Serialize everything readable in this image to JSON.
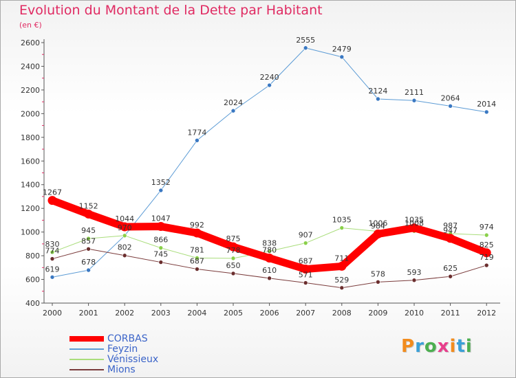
{
  "header": {
    "title": "Evolution du Montant de la Dette par Habitant",
    "subtitle": "(en €)"
  },
  "logo": {
    "text": "Proxiti",
    "colors": [
      "#f28c1e",
      "#3aa0d8",
      "#4caf50",
      "#e83e8c",
      "#f28c1e",
      "#3aa0d8",
      "#4caf50"
    ]
  },
  "chart_data": {
    "type": "line",
    "title": "Evolution du Montant de la Dette par Habitant",
    "subtitle": "(en €)",
    "x": [
      "2000",
      "2001",
      "2002",
      "2003",
      "2004",
      "2005",
      "2006",
      "2007",
      "2008",
      "2009",
      "2010",
      "2011",
      "2012"
    ],
    "ylim": [
      400,
      2600
    ],
    "yticks": [
      400,
      600,
      800,
      1000,
      1200,
      1400,
      1600,
      1800,
      2000,
      2200,
      2400,
      2600
    ],
    "grid": false,
    "legend_position": "bottom-left",
    "series": [
      {
        "name": "Feyzin",
        "color": "#5b9bd5",
        "marker": "#3a78c2",
        "width": 1,
        "values": [
          619,
          678,
          970,
          1352,
          1774,
          2024,
          2240,
          2555,
          2479,
          2124,
          2111,
          2064,
          2014
        ]
      },
      {
        "name": "Vénissieux",
        "color": "#a9dd7b",
        "marker": "#8ad04a",
        "width": 1,
        "values": [
          830,
          945,
          970,
          866,
          781,
          778,
          838,
          907,
          1035,
          1006,
          1008,
          987,
          974
        ]
      },
      {
        "name": "Mions",
        "color": "#7a3b3b",
        "marker": "#6b2e2e",
        "width": 1,
        "values": [
          774,
          857,
          802,
          745,
          687,
          650,
          610,
          571,
          529,
          578,
          593,
          625,
          719
        ]
      },
      {
        "name": "CORBAS",
        "color": "#ff0000",
        "marker": "#ff0000",
        "width": 11,
        "values": [
          1267,
          1152,
          1044,
          1047,
          992,
          875,
          780,
          687,
          711,
          984,
          1035,
          947,
          825
        ]
      }
    ],
    "data_labels": [
      {
        "text": "1267",
        "x": "2000",
        "y": 1267
      },
      {
        "text": "1152",
        "x": "2001",
        "y": 1152
      },
      {
        "text": "1044",
        "x": "2002",
        "y": 1044
      },
      {
        "text": "1047",
        "x": "2003",
        "y": 1047
      },
      {
        "text": "992",
        "x": "2004",
        "y": 992
      },
      {
        "text": "875",
        "x": "2005",
        "y": 875
      },
      {
        "text": "780",
        "x": "2006",
        "y": 780
      },
      {
        "text": "687",
        "x": "2007",
        "y": 687
      },
      {
        "text": "711",
        "x": "2008",
        "y": 711
      },
      {
        "text": "984",
        "x": "2009",
        "y": 984
      },
      {
        "text": "1035",
        "x": "2010",
        "y": 1035
      },
      {
        "text": "947",
        "x": "2011",
        "y": 947
      },
      {
        "text": "825",
        "x": "2012",
        "y": 825
      },
      {
        "text": "619",
        "x": "2000",
        "y": 619
      },
      {
        "text": "678",
        "x": "2001",
        "y": 678
      },
      {
        "text": "970",
        "x": "2002",
        "y": 970
      },
      {
        "text": "1352",
        "x": "2003",
        "y": 1352
      },
      {
        "text": "1774",
        "x": "2004",
        "y": 1774
      },
      {
        "text": "2024",
        "x": "2005",
        "y": 2024
      },
      {
        "text": "2240",
        "x": "2006",
        "y": 2240
      },
      {
        "text": "2555",
        "x": "2007",
        "y": 2555
      },
      {
        "text": "2479",
        "x": "2008",
        "y": 2479
      },
      {
        "text": "2124",
        "x": "2009",
        "y": 2124
      },
      {
        "text": "2111",
        "x": "2010",
        "y": 2111
      },
      {
        "text": "2064",
        "x": "2011",
        "y": 2064
      },
      {
        "text": "2014",
        "x": "2012",
        "y": 2014
      },
      {
        "text": "830",
        "x": "2000",
        "y": 830
      },
      {
        "text": "945",
        "x": "2001",
        "y": 945
      },
      {
        "text": "866",
        "x": "2003",
        "y": 866
      },
      {
        "text": "781",
        "x": "2004",
        "y": 781
      },
      {
        "text": "778",
        "x": "2005",
        "y": 778
      },
      {
        "text": "838",
        "x": "2006",
        "y": 838
      },
      {
        "text": "907",
        "x": "2007",
        "y": 907
      },
      {
        "text": "1035",
        "x": "2008",
        "y": 1035
      },
      {
        "text": "1006",
        "x": "2009",
        "y": 1006
      },
      {
        "text": "1008",
        "x": "2010",
        "y": 1008
      },
      {
        "text": "987",
        "x": "2011",
        "y": 987
      },
      {
        "text": "974",
        "x": "2012",
        "y": 974
      },
      {
        "text": "774",
        "x": "2000",
        "y": 774
      },
      {
        "text": "857",
        "x": "2001",
        "y": 857
      },
      {
        "text": "802",
        "x": "2002",
        "y": 802
      },
      {
        "text": "745",
        "x": "2003",
        "y": 745
      },
      {
        "text": "687",
        "x": "2004",
        "y": 687
      },
      {
        "text": "650",
        "x": "2005",
        "y": 650
      },
      {
        "text": "610",
        "x": "2006",
        "y": 610
      },
      {
        "text": "571",
        "x": "2007",
        "y": 571
      },
      {
        "text": "529",
        "x": "2008",
        "y": 529
      },
      {
        "text": "578",
        "x": "2009",
        "y": 578
      },
      {
        "text": "593",
        "x": "2010",
        "y": 593
      },
      {
        "text": "625",
        "x": "2011",
        "y": 625
      },
      {
        "text": "719",
        "x": "2012",
        "y": 719
      }
    ]
  },
  "legend": [
    {
      "label": "CORBAS",
      "color": "#ff0000",
      "thick": true
    },
    {
      "label": "Feyzin",
      "color": "#5b9bd5",
      "thick": false
    },
    {
      "label": "Vénissieux",
      "color": "#a9dd7b",
      "thick": false
    },
    {
      "label": "Mions",
      "color": "#7a3b3b",
      "thick": false
    }
  ]
}
